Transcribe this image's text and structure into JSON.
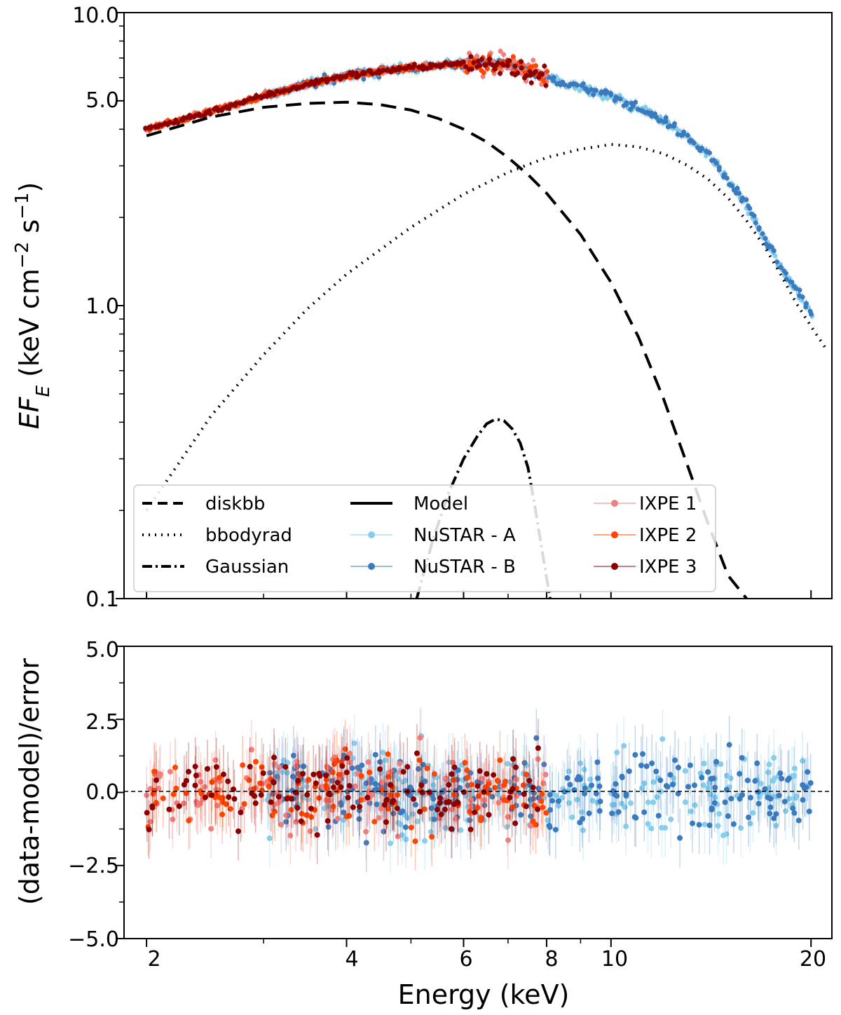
{
  "chart_data": [
    {
      "type": "line",
      "panel": "spectrum",
      "ylabel": "EF_E (keV cm^-2 s^-1)",
      "ylabel_parts": {
        "main": "EF",
        "sub": "E",
        "unit_prefix": " (keV cm",
        "exp1": "−2",
        "mid": " s",
        "exp2": "−1",
        "close": ")"
      },
      "xscale": "log",
      "yscale": "log",
      "xlim": [
        1.85,
        21.5
      ],
      "ylim": [
        0.1,
        10.0
      ],
      "yticks": [
        0.1,
        1.0,
        5.0,
        10.0
      ],
      "ytick_labels": [
        "0.1",
        "1.0",
        "5.0",
        "10.0"
      ],
      "legend_position": "lower-left",
      "legend": [
        "diskbb",
        "bbodyrad",
        "Gaussian",
        "Model",
        "NuSTAR - A",
        "NuSTAR - B",
        "IXPE 1",
        "IXPE 2",
        "IXPE 3"
      ],
      "components": {
        "diskbb": {
          "x": [
            2,
            2.5,
            3,
            3.5,
            4,
            4.5,
            5,
            5.5,
            6,
            6.5,
            7,
            7.5,
            8,
            9,
            10,
            11,
            12,
            13,
            14,
            15,
            16
          ],
          "y": [
            3.8,
            4.4,
            4.75,
            4.9,
            4.95,
            4.85,
            4.65,
            4.35,
            4.0,
            3.62,
            3.2,
            2.8,
            2.42,
            1.75,
            1.2,
            0.78,
            0.48,
            0.29,
            0.18,
            0.12,
            0.1
          ]
        },
        "bbodyrad": {
          "x": [
            2,
            2.5,
            3,
            3.5,
            4,
            5,
            6,
            7,
            8,
            9,
            10,
            11,
            12,
            13,
            14,
            15,
            16,
            17,
            18,
            19,
            20,
            21
          ],
          "y": [
            0.2,
            0.42,
            0.68,
            0.98,
            1.28,
            1.85,
            2.4,
            2.85,
            3.2,
            3.42,
            3.55,
            3.48,
            3.3,
            3.02,
            2.7,
            2.33,
            1.95,
            1.6,
            1.28,
            1.02,
            0.85,
            0.72
          ]
        },
        "gaussian": {
          "x": [
            5.1,
            5.4,
            5.7,
            6.0,
            6.3,
            6.5,
            6.7,
            6.9,
            7.1,
            7.3,
            7.5,
            7.7,
            7.9,
            8.1
          ],
          "y": [
            0.1,
            0.16,
            0.23,
            0.3,
            0.36,
            0.395,
            0.41,
            0.405,
            0.38,
            0.34,
            0.28,
            0.2,
            0.14,
            0.1
          ]
        },
        "model": {
          "x": [
            2,
            2.5,
            3,
            3.5,
            4,
            5,
            6,
            7,
            8,
            10,
            12,
            14,
            16,
            18,
            20,
            21
          ],
          "y": [
            4.0,
            4.6,
            5.2,
            5.7,
            6.1,
            6.5,
            6.7,
            6.7,
            6.0,
            5.2,
            4.3,
            3.3,
            2.2,
            1.35,
            0.95,
            0.75
          ]
        }
      },
      "colors": {
        "nustar_a": "#87CEEB",
        "nustar_b": "#3A7BBF",
        "ixpe_1": "#F08080",
        "ixpe_2": "#FF4500",
        "ixpe_3": "#8B0000"
      }
    },
    {
      "type": "scatter",
      "panel": "residuals",
      "xlabel": "Energy (keV)",
      "ylabel": "(data-model)/error",
      "xscale": "log",
      "xlim": [
        1.85,
        21.5
      ],
      "ylim": [
        -5.0,
        5.0
      ],
      "xticks": [
        2,
        4,
        6,
        8,
        10,
        20
      ],
      "xtick_labels": [
        "2",
        "4",
        "6",
        "8",
        "10",
        "20"
      ],
      "yticks": [
        -5.0,
        -2.5,
        0.0,
        2.5,
        5.0
      ],
      "ytick_labels": [
        "−5.0",
        "−2.5",
        "0.0",
        "2.5",
        "5.0"
      ],
      "series": [
        {
          "name": "NuSTAR - A",
          "x_range": [
            3,
            20
          ],
          "y_range": [
            -3.2,
            2.8
          ]
        },
        {
          "name": "NuSTAR - B",
          "x_range": [
            3,
            20
          ],
          "y_range": [
            -3.0,
            3.0
          ]
        },
        {
          "name": "IXPE 1",
          "x_range": [
            2,
            8
          ],
          "y_range": [
            -2.5,
            2.0
          ]
        },
        {
          "name": "IXPE 2",
          "x_range": [
            2,
            8
          ],
          "y_range": [
            -2.5,
            2.0
          ]
        },
        {
          "name": "IXPE 3",
          "x_range": [
            2,
            8
          ],
          "y_range": [
            -2.5,
            2.3
          ]
        }
      ]
    }
  ]
}
